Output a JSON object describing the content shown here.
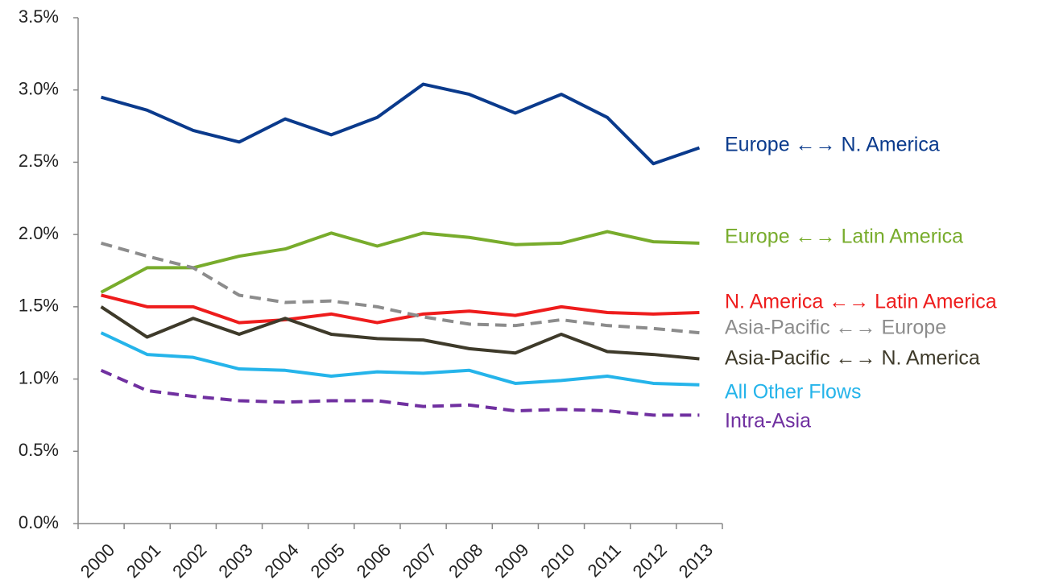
{
  "chart_data": {
    "type": "line",
    "categories": [
      "2000",
      "2001",
      "2002",
      "2003",
      "2004",
      "2005",
      "2006",
      "2007",
      "2008",
      "2009",
      "2010",
      "2011",
      "2012",
      "2013"
    ],
    "ylim": [
      0,
      3.5
    ],
    "yticks": [
      {
        "value": 0,
        "label": "0.0%"
      },
      {
        "value": 0.5,
        "label": "0.5%"
      },
      {
        "value": 1,
        "label": "1.0%"
      },
      {
        "value": 1.5,
        "label": "1.5%"
      },
      {
        "value": 2,
        "label": "2.0%"
      },
      {
        "value": 2.5,
        "label": "2.5%"
      },
      {
        "value": 3,
        "label": "3.0%"
      },
      {
        "value": 3.5,
        "label": "3.5%"
      }
    ],
    "grid": false,
    "series": [
      {
        "name": "Europe ←→ N. America",
        "color": "#0a3a8c",
        "dashed": false,
        "values": [
          2.95,
          2.86,
          2.72,
          2.64,
          2.8,
          2.69,
          2.81,
          3.04,
          2.97,
          2.84,
          2.97,
          2.81,
          2.49,
          2.6
        ]
      },
      {
        "name": "Europe ←→ Latin America",
        "color": "#78ac2c",
        "dashed": false,
        "values": [
          1.6,
          1.77,
          1.77,
          1.85,
          1.9,
          2.01,
          1.92,
          2.01,
          1.98,
          1.93,
          1.94,
          2.02,
          1.95,
          1.94
        ]
      },
      {
        "name": "N. America ←→ Latin America",
        "color": "#ee1c1c",
        "dashed": false,
        "values": [
          1.58,
          1.5,
          1.5,
          1.39,
          1.41,
          1.45,
          1.39,
          1.45,
          1.47,
          1.44,
          1.5,
          1.46,
          1.45,
          1.46
        ]
      },
      {
        "name": "Asia-Pacific ←→ Europe",
        "color": "#8c8c8c",
        "dashed": true,
        "values": [
          1.94,
          1.85,
          1.77,
          1.58,
          1.53,
          1.54,
          1.5,
          1.43,
          1.38,
          1.37,
          1.41,
          1.37,
          1.35,
          1.32
        ]
      },
      {
        "name": "Asia-Pacific ←→ N. America",
        "color": "#3e3a2a",
        "dashed": false,
        "values": [
          1.5,
          1.29,
          1.42,
          1.31,
          1.42,
          1.31,
          1.28,
          1.27,
          1.21,
          1.18,
          1.31,
          1.19,
          1.17,
          1.14
        ]
      },
      {
        "name": "All Other Flows",
        "color": "#25b4ea",
        "dashed": false,
        "values": [
          1.32,
          1.17,
          1.15,
          1.07,
          1.06,
          1.02,
          1.05,
          1.04,
          1.06,
          0.97,
          0.99,
          1.02,
          0.97,
          0.96
        ]
      },
      {
        "name": "Intra-Asia",
        "color": "#7030a0",
        "dashed": true,
        "values": [
          1.06,
          0.92,
          0.88,
          0.85,
          0.84,
          0.85,
          0.85,
          0.81,
          0.82,
          0.78,
          0.79,
          0.78,
          0.75,
          0.75
        ]
      }
    ]
  }
}
